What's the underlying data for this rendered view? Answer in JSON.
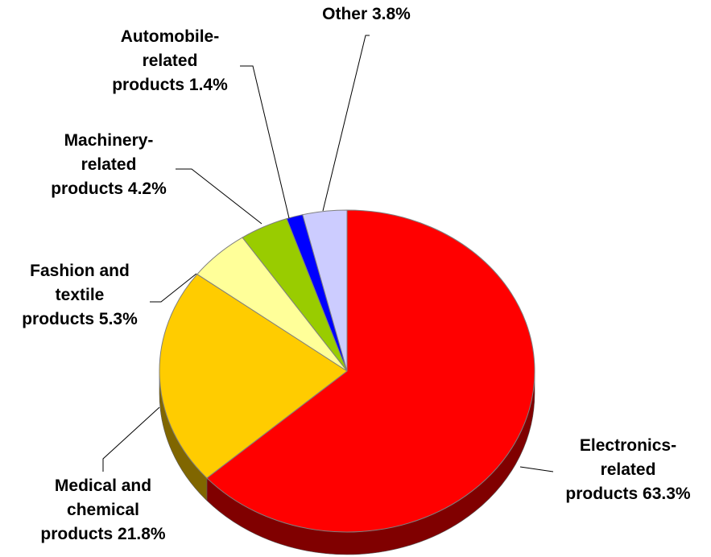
{
  "chart_data": {
    "type": "pie",
    "style": "3d",
    "title": "",
    "categories": [
      "Electronics-related products",
      "Medical and chemical products",
      "Fashion and textile products",
      "Machinery-related products",
      "Automobile-related products",
      "Other"
    ],
    "values": [
      63.3,
      21.8,
      5.3,
      4.2,
      1.4,
      3.8
    ],
    "unit": "%",
    "colors": [
      "#ff0000",
      "#ffcc00",
      "#ffff99",
      "#99cc00",
      "#0000ff",
      "#ccccff"
    ],
    "side_colors": [
      "#800000",
      "#806600",
      "#80804d",
      "#4d6600",
      "#000080",
      "#666680"
    ],
    "labels": [
      [
        "Electronics-",
        "related",
        "products 63.3%"
      ],
      [
        "Medical and",
        "chemical",
        "products 21.8%"
      ],
      [
        "Fashion and",
        "textile",
        "products 5.3%"
      ],
      [
        "Machinery-",
        "related",
        "products 4.2%"
      ],
      [
        "Automobile-",
        "related",
        "products 1.4%"
      ],
      [
        "Other 3.8%"
      ]
    ],
    "start_angle_deg": 90,
    "direction": "clockwise",
    "legend": "none"
  }
}
